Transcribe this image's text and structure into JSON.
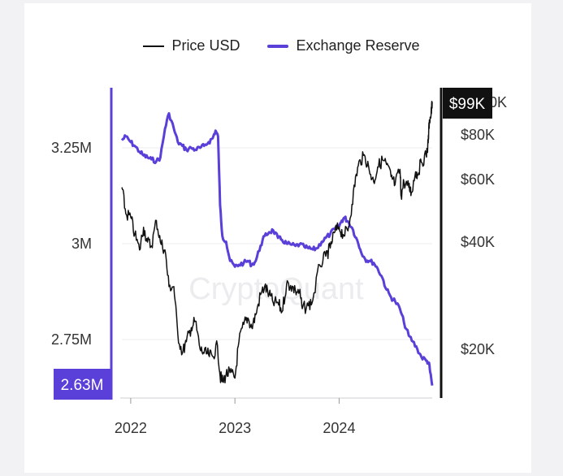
{
  "legend": [
    {
      "name": "Price USD",
      "color": "#111111"
    },
    {
      "name": "Exchange Reserve",
      "color": "#5b3fd9"
    }
  ],
  "watermark": "CryptoQuant",
  "badges": {
    "left": "2.63M",
    "right": "$99K",
    "right_partial": "0K"
  },
  "colors": {
    "reserve": "#5b3fd9",
    "price": "#111111",
    "badge_right": "#111111",
    "badge_left": "#5b3fd9"
  },
  "chart_data": {
    "type": "line",
    "x_ticks": [
      "2022",
      "2023",
      "2024"
    ],
    "y_left": {
      "ticks": [
        "3.25M",
        "3M",
        "2.75M"
      ],
      "values": [
        3250000,
        3000000,
        2750000
      ],
      "range": [
        2630000,
        3400000
      ],
      "last_value": "2.63M"
    },
    "y_right": {
      "ticks": [
        "$80K",
        "$60K",
        "$40K",
        "$20K"
      ],
      "values": [
        80000,
        60000,
        40000,
        20000
      ],
      "scale": "log",
      "last_value": "$99K"
    },
    "grid": true,
    "legend_position": "top",
    "series": [
      {
        "name": "Exchange Reserve",
        "axis": "left",
        "points": [
          [
            "2021-12-01",
            3270000
          ],
          [
            "2021-12-15",
            3280000
          ],
          [
            "2022-01-01",
            3265000
          ],
          [
            "2022-01-15",
            3255000
          ],
          [
            "2022-02-01",
            3240000
          ],
          [
            "2022-02-15",
            3230000
          ],
          [
            "2022-03-01",
            3225000
          ],
          [
            "2022-03-15",
            3220000
          ],
          [
            "2022-04-01",
            3215000
          ],
          [
            "2022-04-15",
            3225000
          ],
          [
            "2022-05-01",
            3300000
          ],
          [
            "2022-05-15",
            3340000
          ],
          [
            "2022-06-01",
            3300000
          ],
          [
            "2022-06-15",
            3265000
          ],
          [
            "2022-07-01",
            3255000
          ],
          [
            "2022-07-15",
            3245000
          ],
          [
            "2022-08-01",
            3250000
          ],
          [
            "2022-08-15",
            3245000
          ],
          [
            "2022-09-01",
            3250000
          ],
          [
            "2022-09-15",
            3255000
          ],
          [
            "2022-10-01",
            3265000
          ],
          [
            "2022-10-15",
            3275000
          ],
          [
            "2022-10-25",
            3295000
          ],
          [
            "2022-11-03",
            3280000
          ],
          [
            "2022-11-10",
            3100000
          ],
          [
            "2022-11-18",
            3020000
          ],
          [
            "2022-12-01",
            3005000
          ],
          [
            "2022-12-15",
            2955000
          ],
          [
            "2023-01-01",
            2940000
          ],
          [
            "2023-01-15",
            2945000
          ],
          [
            "2023-02-01",
            2950000
          ],
          [
            "2023-02-15",
            2955000
          ],
          [
            "2023-03-01",
            2945000
          ],
          [
            "2023-03-15",
            2955000
          ],
          [
            "2023-04-01",
            2995000
          ],
          [
            "2023-04-15",
            3020000
          ],
          [
            "2023-05-01",
            3030000
          ],
          [
            "2023-05-15",
            3035000
          ],
          [
            "2023-06-01",
            3015000
          ],
          [
            "2023-06-15",
            3010000
          ],
          [
            "2023-07-01",
            3000000
          ],
          [
            "2023-07-15",
            2998000
          ],
          [
            "2023-08-01",
            2994000
          ],
          [
            "2023-08-15",
            2998000
          ],
          [
            "2023-09-01",
            2992000
          ],
          [
            "2023-09-15",
            2988000
          ],
          [
            "2023-10-01",
            2985000
          ],
          [
            "2023-10-15",
            2988000
          ],
          [
            "2023-11-01",
            3005000
          ],
          [
            "2023-11-15",
            3015000
          ],
          [
            "2023-12-01",
            3025000
          ],
          [
            "2023-12-15",
            3038000
          ],
          [
            "2024-01-01",
            3045000
          ],
          [
            "2024-01-10",
            3060000
          ],
          [
            "2024-01-20",
            3068000
          ],
          [
            "2024-02-01",
            3058000
          ],
          [
            "2024-02-15",
            3042000
          ],
          [
            "2024-03-01",
            3015000
          ],
          [
            "2024-03-15",
            2985000
          ],
          [
            "2024-04-01",
            2960000
          ],
          [
            "2024-04-15",
            2955000
          ],
          [
            "2024-05-01",
            2950000
          ],
          [
            "2024-05-15",
            2935000
          ],
          [
            "2024-06-01",
            2910000
          ],
          [
            "2024-06-15",
            2880000
          ],
          [
            "2024-07-01",
            2860000
          ],
          [
            "2024-07-15",
            2850000
          ],
          [
            "2024-08-01",
            2830000
          ],
          [
            "2024-08-15",
            2795000
          ],
          [
            "2024-09-01",
            2760000
          ],
          [
            "2024-09-15",
            2745000
          ],
          [
            "2024-10-01",
            2725000
          ],
          [
            "2024-10-15",
            2705000
          ],
          [
            "2024-11-01",
            2695000
          ],
          [
            "2024-11-10",
            2690000
          ],
          [
            "2024-11-15",
            2665000
          ],
          [
            "2024-11-22",
            2630000
          ]
        ]
      },
      {
        "name": "Price USD",
        "axis": "right",
        "points": [
          [
            "2021-12-01",
            57000
          ],
          [
            "2021-12-15",
            48000
          ],
          [
            "2022-01-01",
            47000
          ],
          [
            "2022-01-15",
            42000
          ],
          [
            "2022-02-01",
            38000
          ],
          [
            "2022-02-15",
            44000
          ],
          [
            "2022-03-01",
            40000
          ],
          [
            "2022-03-15",
            39000
          ],
          [
            "2022-04-01",
            46000
          ],
          [
            "2022-04-15",
            40000
          ],
          [
            "2022-05-01",
            38000
          ],
          [
            "2022-05-15",
            30000
          ],
          [
            "2022-06-01",
            30000
          ],
          [
            "2022-06-15",
            22000
          ],
          [
            "2022-07-01",
            19500
          ],
          [
            "2022-07-15",
            21000
          ],
          [
            "2022-08-01",
            23000
          ],
          [
            "2022-08-15",
            24000
          ],
          [
            "2022-09-01",
            20000
          ],
          [
            "2022-09-15",
            19500
          ],
          [
            "2022-10-01",
            19300
          ],
          [
            "2022-10-15",
            19100
          ],
          [
            "2022-11-01",
            20500
          ],
          [
            "2022-11-10",
            16800
          ],
          [
            "2022-11-20",
            16200
          ],
          [
            "2022-12-01",
            17000
          ],
          [
            "2022-12-15",
            17200
          ],
          [
            "2023-01-01",
            16600
          ],
          [
            "2023-01-15",
            21000
          ],
          [
            "2023-02-01",
            23500
          ],
          [
            "2023-02-15",
            24500
          ],
          [
            "2023-03-01",
            23000
          ],
          [
            "2023-03-15",
            25000
          ],
          [
            "2023-04-01",
            28500
          ],
          [
            "2023-04-15",
            30000
          ],
          [
            "2023-05-01",
            28500
          ],
          [
            "2023-05-15",
            27000
          ],
          [
            "2023-06-01",
            27000
          ],
          [
            "2023-06-15",
            25500
          ],
          [
            "2023-07-01",
            30500
          ],
          [
            "2023-07-15",
            30200
          ],
          [
            "2023-08-01",
            29200
          ],
          [
            "2023-08-15",
            29000
          ],
          [
            "2023-08-25",
            26000
          ],
          [
            "2023-09-15",
            26500
          ],
          [
            "2023-10-01",
            27500
          ],
          [
            "2023-10-25",
            34500
          ],
          [
            "2023-11-15",
            36500
          ],
          [
            "2023-12-01",
            38500
          ],
          [
            "2023-12-15",
            42500
          ],
          [
            "2024-01-01",
            44000
          ],
          [
            "2024-01-15",
            42000
          ],
          [
            "2024-02-01",
            43000
          ],
          [
            "2024-02-15",
            51000
          ],
          [
            "2024-03-01",
            62000
          ],
          [
            "2024-03-15",
            68000
          ],
          [
            "2024-04-01",
            69500
          ],
          [
            "2024-04-15",
            64000
          ],
          [
            "2024-05-01",
            59000
          ],
          [
            "2024-05-15",
            65000
          ],
          [
            "2024-06-01",
            68000
          ],
          [
            "2024-06-15",
            66000
          ],
          [
            "2024-07-01",
            61000
          ],
          [
            "2024-07-15",
            58000
          ],
          [
            "2024-08-01",
            64000
          ],
          [
            "2024-08-05",
            54000
          ],
          [
            "2024-08-15",
            59000
          ],
          [
            "2024-09-01",
            57000
          ],
          [
            "2024-09-10",
            55000
          ],
          [
            "2024-09-25",
            63000
          ],
          [
            "2024-10-01",
            62000
          ],
          [
            "2024-10-15",
            67000
          ],
          [
            "2024-11-01",
            70000
          ],
          [
            "2024-11-08",
            76000
          ],
          [
            "2024-11-12",
            88000
          ],
          [
            "2024-11-18",
            91000
          ],
          [
            "2024-11-22",
            99000
          ]
        ]
      }
    ]
  }
}
